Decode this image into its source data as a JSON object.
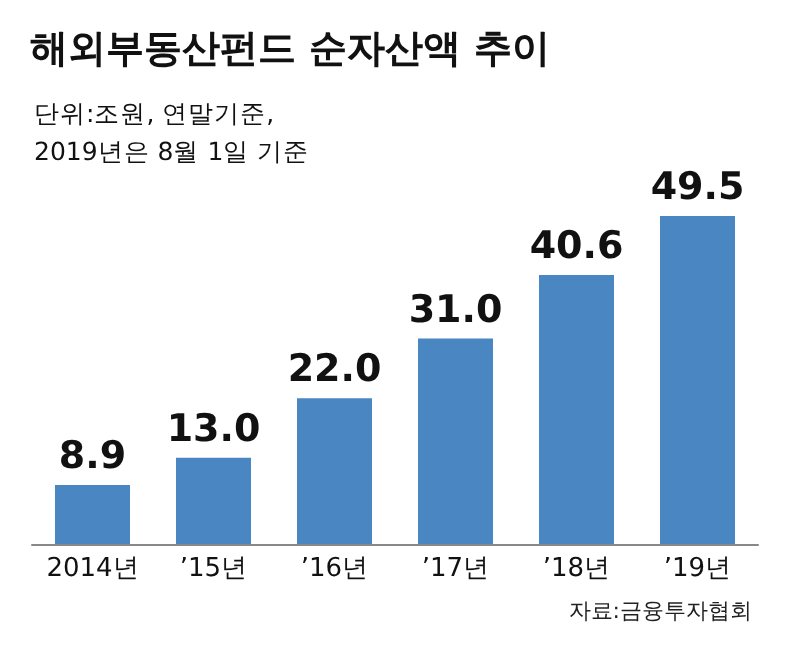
{
  "chart_data": {
    "type": "bar",
    "title": "해외부동산펀드 순자산액 추이",
    "subtitle": "단위:조원, 연말기준,\n2019년은 8월 1일 기준",
    "categories": [
      "2014년",
      "’15년",
      "’16년",
      "’17년",
      "’18년",
      "’19년"
    ],
    "values": [
      8.9,
      13.0,
      22.0,
      31.0,
      40.6,
      49.5
    ],
    "value_labels": [
      "8.9",
      "13.0",
      "22.0",
      "31.0",
      "40.6",
      "49.5"
    ],
    "color": "#4a87c2",
    "annotations": [
      "자료:금융투자협회"
    ]
  }
}
